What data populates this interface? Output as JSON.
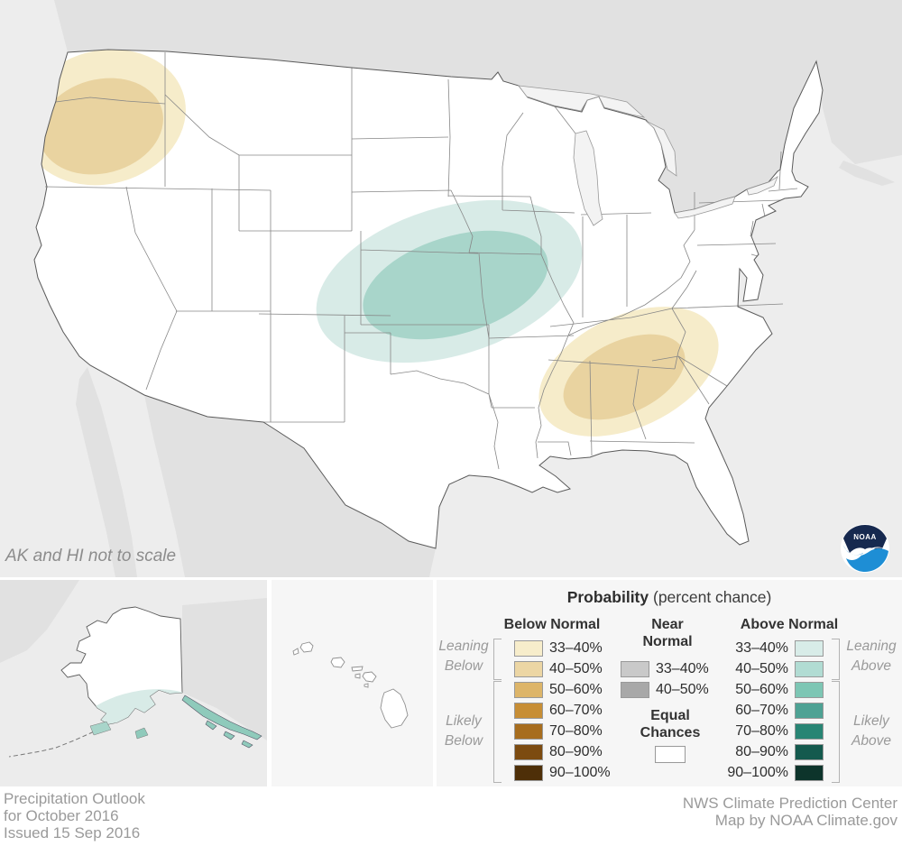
{
  "map_note": "AK and HI not to scale",
  "logo": {
    "name": "NOAA logo",
    "text": "NOAA"
  },
  "legend": {
    "title_bold": "Probability",
    "title_rest": " (percent chance)",
    "below": {
      "header": "Below Normal",
      "rows": [
        {
          "label": "33–40%",
          "color": "#f7edcb"
        },
        {
          "label": "40–50%",
          "color": "#ecd6a4"
        },
        {
          "label": "50–60%",
          "color": "#ddb569"
        },
        {
          "label": "60–70%",
          "color": "#c78e35"
        },
        {
          "label": "70–80%",
          "color": "#a76d1e"
        },
        {
          "label": "80–90%",
          "color": "#7c4b10"
        },
        {
          "label": "90–100%",
          "color": "#4e2f08"
        }
      ],
      "groups": [
        {
          "label_lines": [
            "Leaning",
            "Below"
          ]
        },
        {
          "label_lines": [
            "Likely",
            "Below"
          ]
        }
      ]
    },
    "near": {
      "header_lines": [
        "Near",
        "Normal"
      ],
      "rows": [
        {
          "label": "33–40%",
          "color": "#c9c9c9"
        },
        {
          "label": "40–50%",
          "color": "#a8a8a8"
        }
      ],
      "equal": {
        "label_lines": [
          "Equal",
          "Chances"
        ],
        "color": "#ffffff"
      }
    },
    "above": {
      "header": "Above Normal",
      "rows": [
        {
          "label": "33–40%",
          "color": "#d8ece8"
        },
        {
          "label": "40–50%",
          "color": "#b1dcd3"
        },
        {
          "label": "50–60%",
          "color": "#7dc6b4"
        },
        {
          "label": "60–70%",
          "color": "#4ea294"
        },
        {
          "label": "70–80%",
          "color": "#288574"
        },
        {
          "label": "80–90%",
          "color": "#145a4e"
        },
        {
          "label": "90–100%",
          "color": "#0d342b"
        }
      ],
      "groups": [
        {
          "label_lines": [
            "Leaning",
            "Above"
          ]
        },
        {
          "label_lines": [
            "Likely",
            "Above"
          ]
        }
      ]
    }
  },
  "map": {
    "colors": {
      "ocean": "#ededed",
      "foreign_land": "#e1e1e1",
      "us_land": "#ffffff",
      "lake": "#f3f3f3",
      "below_33_40": "#f6ecca",
      "below_40_50": "#e9d3a0",
      "above_33_40": "#d8ebe7",
      "above_40_50": "#a8d5ca",
      "ak_panhandle": "#8fcabb"
    },
    "regions": [
      {
        "name": "pacific-northwest",
        "category": "below-normal",
        "levels": [
          "33–40%",
          "40–50%"
        ]
      },
      {
        "name": "central-plains",
        "category": "above-normal",
        "levels": [
          "33–40%",
          "40–50%"
        ]
      },
      {
        "name": "tennessee-valley",
        "category": "below-normal",
        "levels": [
          "33–40%",
          "40–50%"
        ]
      },
      {
        "name": "southern-alaska",
        "category": "above-normal",
        "levels": [
          "33–40%",
          "40–50%"
        ]
      }
    ]
  },
  "footer": {
    "left_lines": [
      "Precipitation Outlook",
      "for October 2016",
      "Issued 15 Sep 2016"
    ],
    "right_lines": [
      "NWS Climate Prediction Center",
      "Map by NOAA Climate.gov"
    ]
  }
}
